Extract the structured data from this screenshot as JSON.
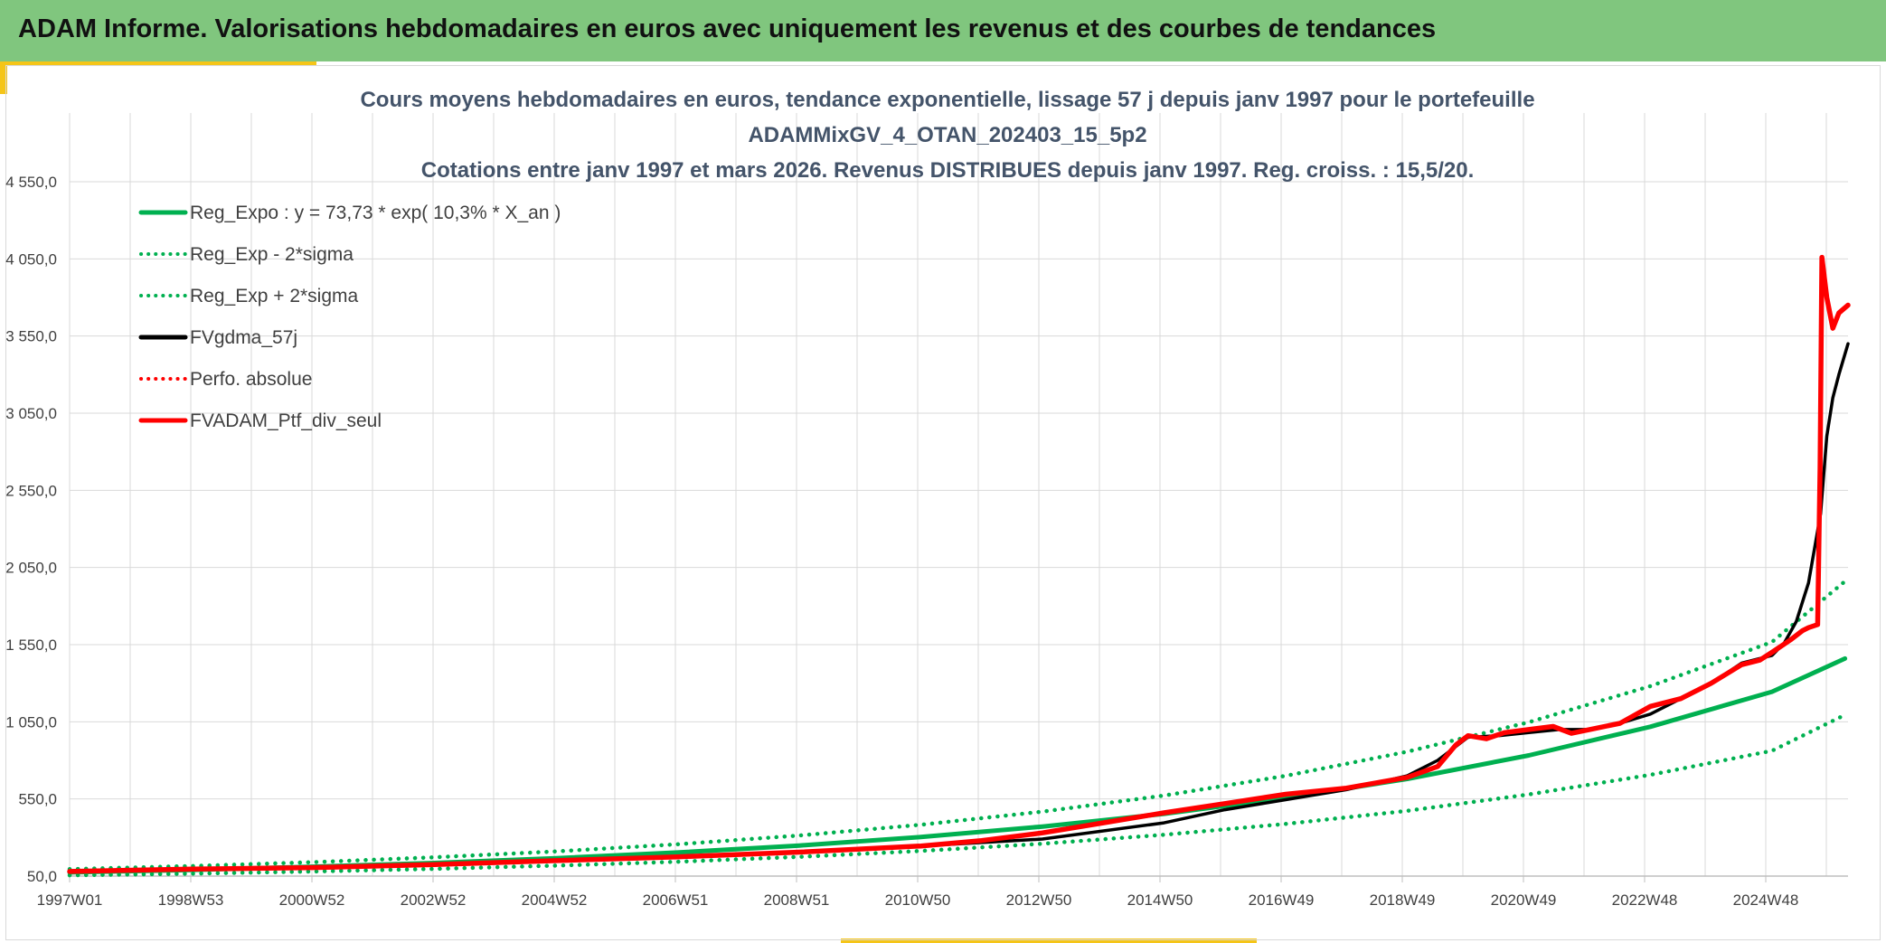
{
  "header": {
    "title": "ADAM Informe. Valorisations hebdomadaires en euros avec uniquement les revenus et des courbes de tendances"
  },
  "colors": {
    "banner": "#80c67e",
    "accent": "#f5c518",
    "trend": "#00b050",
    "smooth": "#000000",
    "portfolio": "#ff0000",
    "grid": "#d9d9d9"
  },
  "chart_data": {
    "type": "line",
    "title_lines": [
      "Cours moyens hebdomadaires en euros, tendance exponentielle, lissage 57 j depuis janv 1997 pour le portefeuille",
      "ADAMMixGV_4_OTAN_202403_15_5p2",
      "Cotations entre janv 1997 et mars 2026. Revenus DISTRIBUES depuis janv 1997. Reg. croiss. : 15,5/20."
    ],
    "x_tick_labels": [
      "1997W01",
      "1998W53",
      "2000W52",
      "2002W52",
      "2004W52",
      "2006W51",
      "2008W51",
      "2010W50",
      "2012W50",
      "2014W50",
      "2016W49",
      "2018W49",
      "2020W49",
      "2022W48",
      "2024W48"
    ],
    "x_range": [
      1997.0,
      2026.25
    ],
    "y_tick_labels": [
      "50,0",
      "550,0",
      "1 050,0",
      "1 550,0",
      "2 050,0",
      "2 550,0",
      "3 050,0",
      "3 550,0",
      "4 050,0",
      "4 550,0"
    ],
    "ylim": [
      50,
      4550
    ],
    "grid": true,
    "legend_position": "top-left",
    "series": [
      {
        "name": "Reg_Expo : y = 73,73 * exp( 10,3% *  X_an )",
        "color": "#00b050",
        "style": "solid",
        "x": [
          1997,
          1999,
          2001,
          2003,
          2005,
          2007,
          2009,
          2011,
          2013,
          2015,
          2017,
          2019,
          2021,
          2023,
          2025,
          2026.2
        ],
        "values": [
          74,
          90,
          111,
          135,
          166,
          203,
          248,
          303,
          371,
          454,
          556,
          680,
          832,
          1018,
          1245,
          1460
        ]
      },
      {
        "name": "Reg_Exp - 2*sigma",
        "color": "#00b050",
        "style": "dotted",
        "x": [
          1997,
          1999,
          2001,
          2003,
          2005,
          2007,
          2009,
          2011,
          2013,
          2015,
          2017,
          2019,
          2021,
          2023,
          2025,
          2026.2
        ],
        "values": [
          55,
          66,
          80,
          97,
          118,
          143,
          175,
          213,
          260,
          318,
          388,
          473,
          579,
          706,
          862,
          1095
        ]
      },
      {
        "name": "Reg_Exp + 2*sigma",
        "color": "#00b050",
        "style": "dotted",
        "x": [
          1997,
          1999,
          2001,
          2003,
          2005,
          2007,
          2009,
          2011,
          2013,
          2015,
          2017,
          2019,
          2021,
          2023,
          2025,
          2026.2
        ],
        "values": [
          95,
          115,
          140,
          172,
          210,
          256,
          313,
          383,
          468,
          572,
          700,
          856,
          1047,
          1281,
          1567,
          1960
        ]
      },
      {
        "name": "FVgdma_57j",
        "color": "#000000",
        "style": "solid",
        "x": [
          1997,
          1999,
          2001,
          2003,
          2005,
          2007,
          2009,
          2011,
          2013,
          2015,
          2016,
          2017,
          2018,
          2019,
          2019.5,
          2020,
          2020.5,
          2021,
          2021.5,
          2022,
          2022.5,
          2023,
          2023.5,
          2024,
          2024.5,
          2025,
          2025.2,
          2025.4,
          2025.6,
          2025.8,
          2025.9,
          2026.0,
          2026.1,
          2026.25
        ],
        "values": [
          80,
          92,
          110,
          128,
          150,
          175,
          205,
          245,
          290,
          395,
          480,
          545,
          610,
          700,
          800,
          950,
          960,
          980,
          1000,
          1000,
          1040,
          1100,
          1200,
          1300,
          1430,
          1480,
          1560,
          1700,
          1950,
          2400,
          2900,
          3150,
          3300,
          3500
        ]
      },
      {
        "name": "Perfo. absolue",
        "color": "#ff0000",
        "style": "dotted",
        "x": [],
        "values": []
      },
      {
        "name": "FVADAM_Ptf_div_seul",
        "color": "#ff0000",
        "style": "solid",
        "x": [
          1997,
          1999,
          2001,
          2003,
          2005,
          2007,
          2009,
          2011,
          2012,
          2013,
          2014,
          2015,
          2016,
          2017,
          2018,
          2019,
          2019.5,
          2019.8,
          2020,
          2020.3,
          2020.6,
          2021,
          2021.4,
          2021.7,
          2022,
          2022.5,
          2023,
          2023.5,
          2024,
          2024.5,
          2024.8,
          2025,
          2025.3,
          2025.5,
          2025.6,
          2025.75,
          2025.79,
          2025.82,
          2025.9,
          2026.0,
          2026.1,
          2026.25
        ],
        "values": [
          80,
          95,
          105,
          125,
          150,
          175,
          205,
          245,
          280,
          330,
          395,
          460,
          520,
          580,
          620,
          690,
          760,
          900,
          960,
          940,
          980,
          1000,
          1020,
          975,
          1000,
          1040,
          1150,
          1200,
          1300,
          1420,
          1450,
          1500,
          1580,
          1640,
          1660,
          1680,
          2700,
          4060,
          3800,
          3600,
          3700,
          3750
        ]
      }
    ]
  }
}
